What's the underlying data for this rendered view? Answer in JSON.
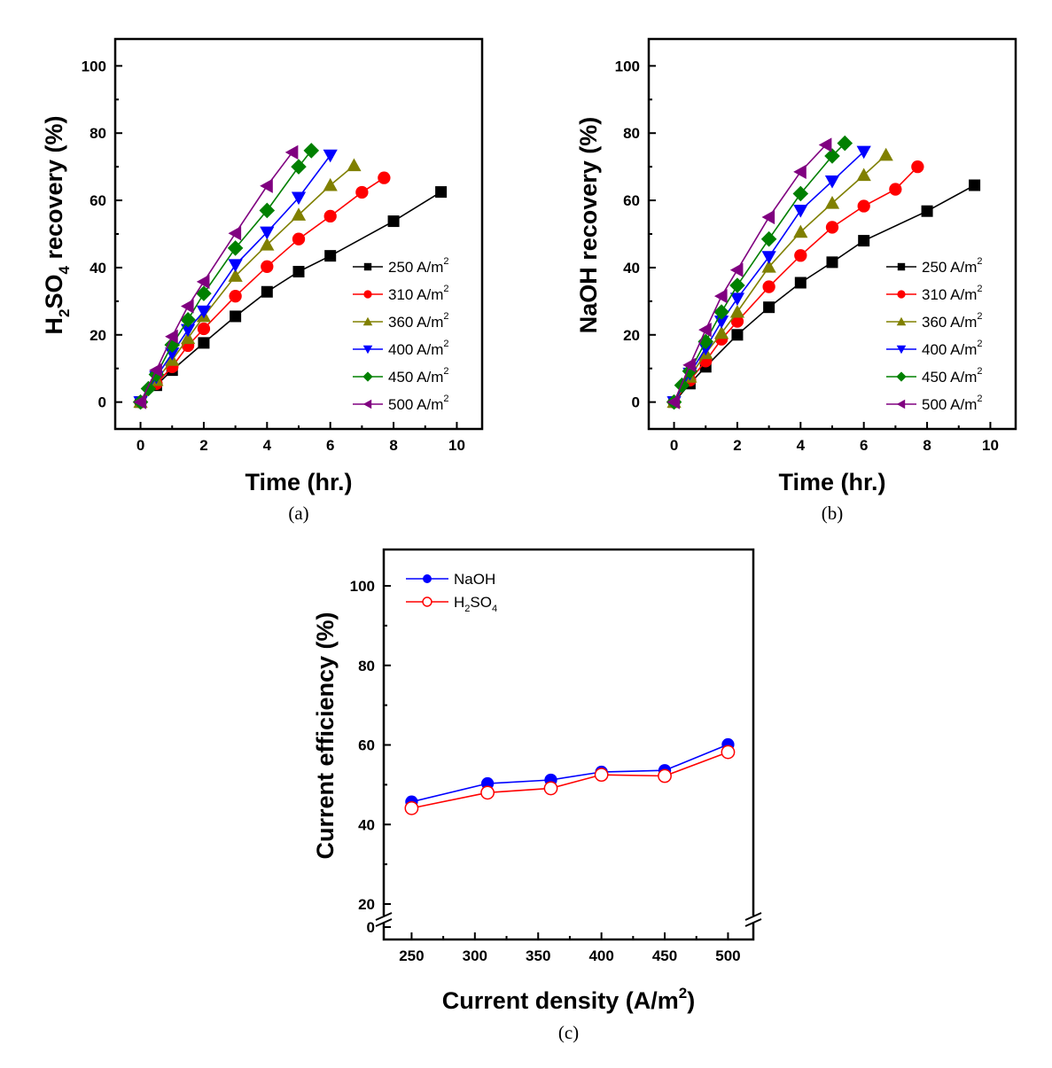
{
  "chart_data": [
    {
      "id": "a",
      "type": "line",
      "panel_label": "(a)",
      "title": "",
      "xlabel": "Time (hr.)",
      "ylabel_parts": [
        "H",
        "2",
        "SO",
        "4",
        " recovery (%)"
      ],
      "ylabel": "H2SO4 recovery (%)",
      "xlim": [
        -0.8,
        10.8
      ],
      "ylim": [
        -8,
        108
      ],
      "xticks": [
        0,
        2,
        4,
        6,
        8,
        10
      ],
      "yticks": [
        0,
        20,
        40,
        60,
        80,
        100
      ],
      "grid": false,
      "legend_position": "lower-right",
      "series": [
        {
          "name": "250 A/m",
          "sup": "2",
          "color": "#000000",
          "marker": "square",
          "x": [
            0,
            0.5,
            1,
            2,
            3,
            4,
            5,
            6,
            8,
            9.5
          ],
          "y": [
            0,
            5,
            9.5,
            17.6,
            25.5,
            32.8,
            38.8,
            43.5,
            53.8,
            62.5
          ]
        },
        {
          "name": "310 A/m",
          "sup": "2",
          "color": "#ff0000",
          "marker": "circle",
          "x": [
            0,
            0.5,
            1,
            1.5,
            2,
            3,
            4,
            5,
            6,
            7,
            7.7
          ],
          "y": [
            0,
            5.5,
            10.5,
            16.8,
            21.8,
            31.5,
            40.3,
            48.5,
            55.3,
            62.4,
            66.7
          ]
        },
        {
          "name": "360 A/m",
          "sup": "2",
          "color": "#808000",
          "marker": "triangle-up",
          "x": [
            0,
            0.5,
            1,
            1.5,
            2,
            3,
            4,
            5,
            6,
            6.75
          ],
          "y": [
            0,
            6.5,
            12.5,
            19,
            25.5,
            37.5,
            46.8,
            55.7,
            64.5,
            70.4
          ]
        },
        {
          "name": "400 A/m",
          "sup": "2",
          "color": "#0000ff",
          "marker": "triangle-down",
          "x": [
            0,
            0.5,
            1,
            1.5,
            2,
            3,
            4,
            5,
            6
          ],
          "y": [
            0,
            7.5,
            14.5,
            21.5,
            27,
            40.8,
            50.5,
            60.8,
            73.4
          ]
        },
        {
          "name": "450 A/m",
          "sup": "2",
          "color": "#008000",
          "marker": "diamond",
          "x": [
            0,
            0.25,
            0.5,
            1,
            1.5,
            2,
            3,
            4,
            5,
            5.4
          ],
          "y": [
            0,
            4,
            8.2,
            17,
            24.5,
            32.3,
            45.8,
            57,
            70,
            74.8
          ]
        },
        {
          "name": "500 A/m",
          "sup": "2",
          "color": "#800080",
          "marker": "triangle-left",
          "x": [
            0,
            0.5,
            1,
            1.5,
            2,
            3,
            4,
            4.8
          ],
          "y": [
            0,
            9.5,
            19.5,
            28.5,
            35.8,
            50.2,
            64.3,
            74.3
          ]
        }
      ]
    },
    {
      "id": "b",
      "type": "line",
      "panel_label": "(b)",
      "title": "",
      "xlabel": "Time (hr.)",
      "ylabel_parts": [
        "NaOH recovery (%)"
      ],
      "ylabel": "NaOH recovery (%)",
      "xlim": [
        -0.8,
        10.8
      ],
      "ylim": [
        -8,
        108
      ],
      "xticks": [
        0,
        2,
        4,
        6,
        8,
        10
      ],
      "yticks": [
        0,
        20,
        40,
        60,
        80,
        100
      ],
      "grid": false,
      "legend_position": "lower-right",
      "series": [
        {
          "name": "250 A/m",
          "sup": "2",
          "color": "#000000",
          "marker": "square",
          "x": [
            0,
            0.5,
            1,
            2,
            3,
            4,
            5,
            6,
            8,
            9.5
          ],
          "y": [
            0,
            5.5,
            10.5,
            20,
            28.2,
            35.5,
            41.6,
            48,
            56.8,
            64.5
          ]
        },
        {
          "name": "310 A/m",
          "sup": "2",
          "color": "#ff0000",
          "marker": "circle",
          "x": [
            0,
            0.5,
            1,
            1.5,
            2,
            3,
            4,
            5,
            6,
            7,
            7.7
          ],
          "y": [
            0,
            6.5,
            12.2,
            18.7,
            24,
            34.3,
            43.6,
            52,
            58.3,
            63.3,
            70
          ]
        },
        {
          "name": "360 A/m",
          "sup": "2",
          "color": "#808000",
          "marker": "triangle-up",
          "x": [
            0,
            0.5,
            1,
            1.5,
            2,
            3,
            4,
            5,
            6,
            6.7
          ],
          "y": [
            0,
            7.5,
            14.5,
            20.5,
            26.8,
            40.2,
            50.6,
            59.2,
            67.5,
            73.5
          ]
        },
        {
          "name": "400 A/m",
          "sup": "2",
          "color": "#0000ff",
          "marker": "triangle-down",
          "x": [
            0,
            0.5,
            1,
            1.5,
            2,
            3,
            4,
            5,
            6
          ],
          "y": [
            0,
            8.5,
            16,
            24,
            30.8,
            43.2,
            57,
            65.7,
            74.5
          ]
        },
        {
          "name": "450 A/m",
          "sup": "2",
          "color": "#008000",
          "marker": "diamond",
          "x": [
            0,
            0.25,
            0.5,
            1,
            1.5,
            2,
            3,
            4,
            5,
            5.4
          ],
          "y": [
            0,
            5,
            9.2,
            18,
            26.8,
            34.7,
            48.5,
            62,
            73.2,
            77
          ]
        },
        {
          "name": "500 A/m",
          "sup": "2",
          "color": "#800080",
          "marker": "triangle-left",
          "x": [
            0,
            0.5,
            1,
            1.5,
            2,
            3,
            4,
            4.8
          ],
          "y": [
            0,
            11,
            21.5,
            31.5,
            39.3,
            55,
            68.5,
            76.5
          ]
        }
      ]
    },
    {
      "id": "c",
      "type": "line",
      "panel_label": "(c)",
      "title": "",
      "xlabel": "Current density (A/m",
      "xlabel_sup": "2",
      "xlabel_end": ")",
      "ylabel": "Current efficiency (%)",
      "xlim": [
        228,
        520
      ],
      "ylim": [
        15,
        109
      ],
      "y_break": {
        "lower_tick": 0,
        "upper_start": 20
      },
      "xticks": [
        250,
        300,
        350,
        400,
        450,
        500
      ],
      "yticks": [
        20,
        40,
        60,
        80,
        100
      ],
      "ytick_below_break": "0",
      "grid": false,
      "legend_position": "top-left",
      "series": [
        {
          "name": "NaOH",
          "color": "#0000ff",
          "marker": "circle-filled",
          "x": [
            250,
            310,
            360,
            400,
            450,
            500
          ],
          "y": [
            45.7,
            50.3,
            51.2,
            53.2,
            53.6,
            60.1
          ]
        },
        {
          "name": "H2SO4",
          "name_parts": [
            "H",
            "2",
            "SO",
            "4"
          ],
          "color": "#ff0000",
          "marker": "circle-open",
          "x": [
            250,
            310,
            360,
            400,
            450,
            500
          ],
          "y": [
            44.1,
            48.0,
            49.1,
            52.5,
            52.2,
            58.2
          ]
        }
      ]
    }
  ]
}
